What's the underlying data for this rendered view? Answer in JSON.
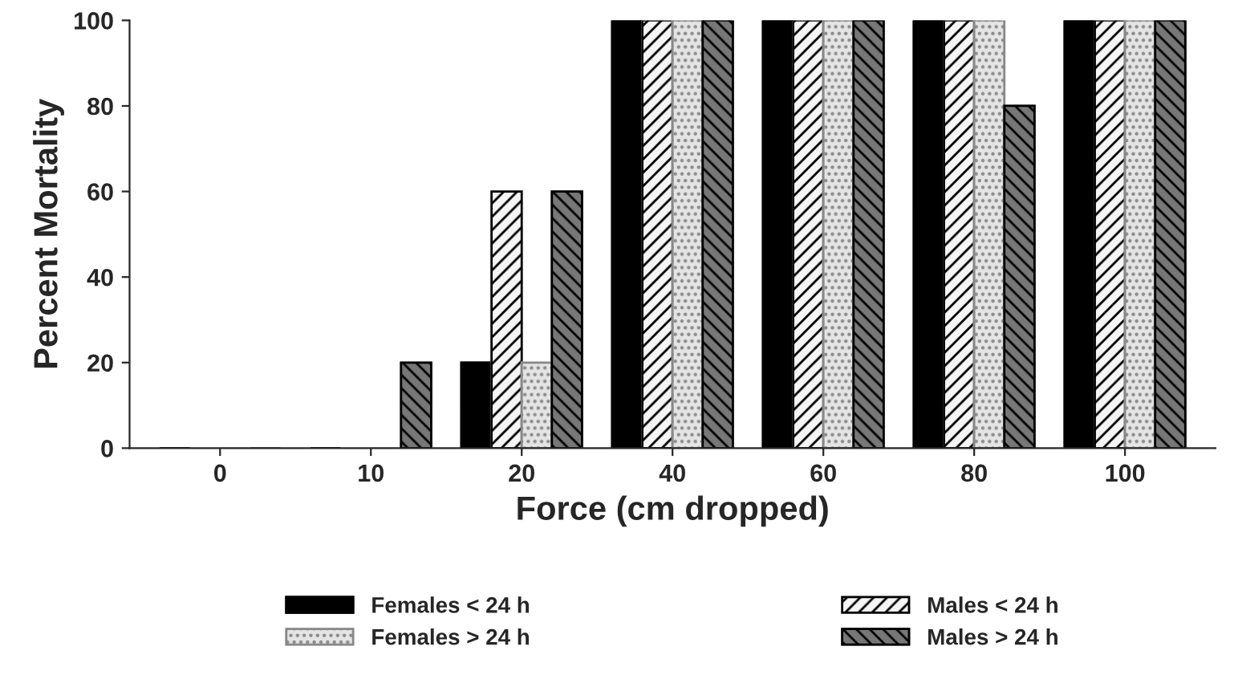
{
  "chart_data": {
    "type": "bar",
    "xlabel": "Force (cm dropped)",
    "ylabel": "Percent Mortality",
    "categories": [
      "0",
      "10",
      "20",
      "40",
      "60",
      "80",
      "100"
    ],
    "series": [
      {
        "name": "Females < 24 h",
        "color": "#000000",
        "values": [
          0,
          0,
          20,
          100,
          100,
          100,
          100
        ]
      },
      {
        "name": "Males < 24 h",
        "color": "#f5f5f5",
        "values": [
          0,
          0,
          60,
          100,
          100,
          100,
          100
        ]
      },
      {
        "name": "Females > 24 h",
        "color": "#e4e4e4",
        "values": [
          0,
          0,
          20,
          100,
          100,
          100,
          100
        ]
      },
      {
        "name": "Males > 24 h",
        "color": "#777777",
        "values": [
          0,
          20,
          60,
          100,
          100,
          80,
          100
        ]
      }
    ],
    "ylim": [
      0,
      100
    ],
    "yticks": [
      0,
      20,
      40,
      60,
      80,
      100
    ],
    "grid": false,
    "legend": "bottom"
  }
}
